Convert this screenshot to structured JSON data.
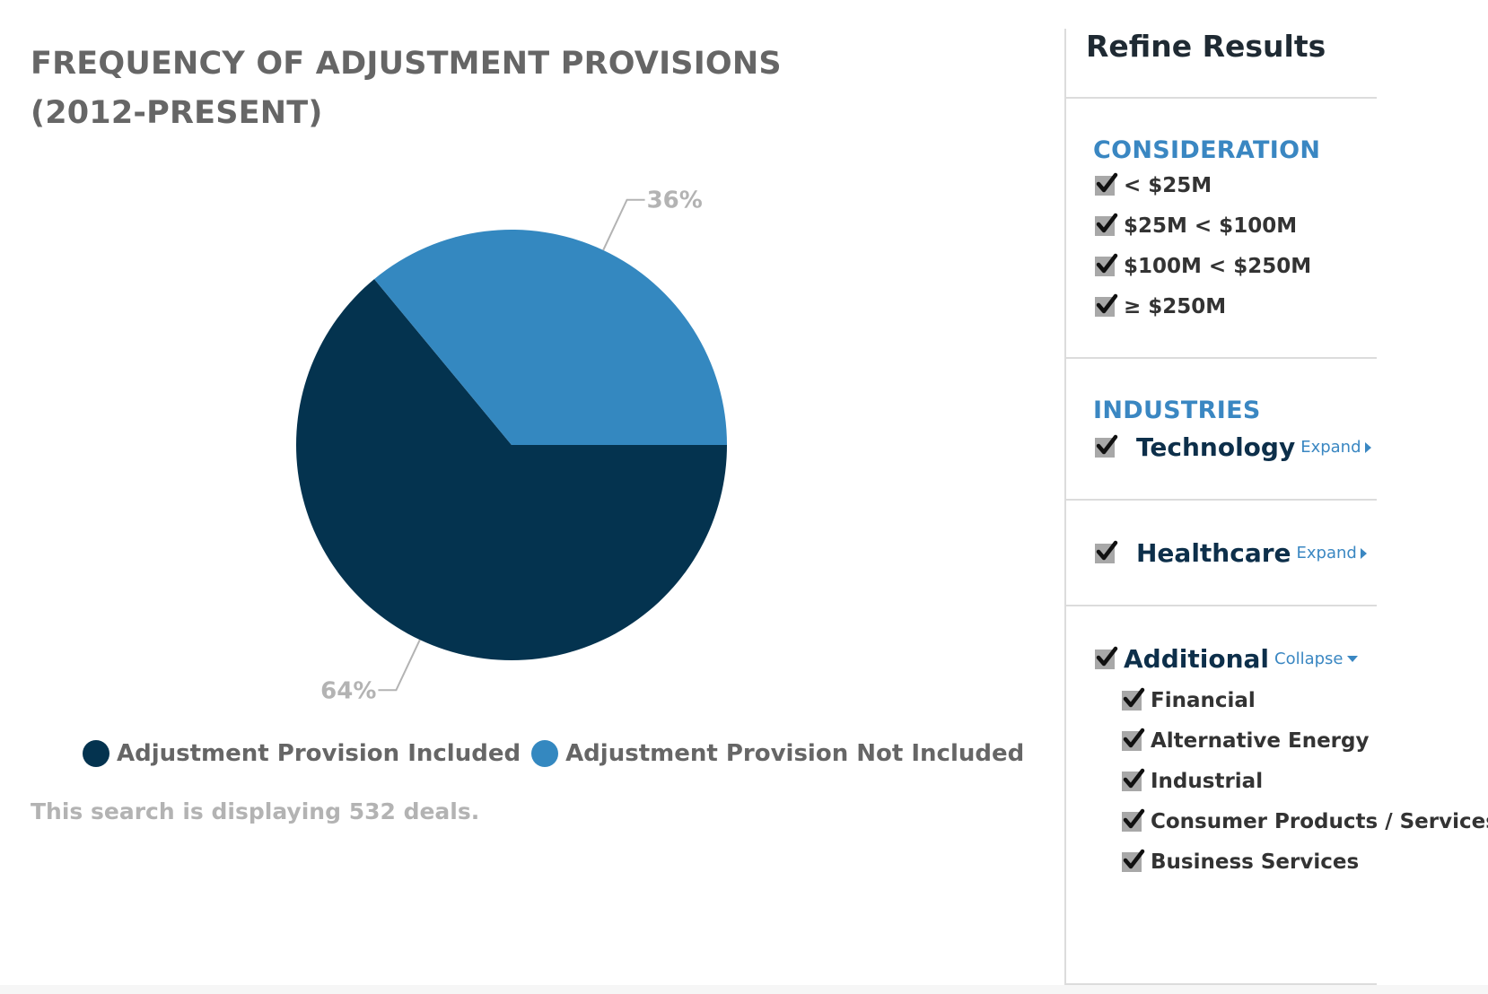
{
  "chart_data": {
    "type": "pie",
    "title": "FREQUENCY OF ADJUSTMENT PROVISIONS (2012-PRESENT)",
    "title_lines": [
      "FREQUENCY OF ADJUSTMENT PROVISIONS",
      "(2012-PRESENT)"
    ],
    "slices": [
      {
        "label": "Adjustment Provision Included",
        "value": 64,
        "display": "64%",
        "color": "#04334f"
      },
      {
        "label": "Adjustment Provision Not Included",
        "value": 36,
        "display": "36%",
        "color": "#3488c0"
      }
    ],
    "legend_position": "bottom",
    "note": "This search is displaying 532 deals."
  },
  "sidebar": {
    "title": "Refine Results",
    "consideration": {
      "heading": "CONSIDERATION",
      "options": [
        "< $25M",
        "$25M < $100M",
        "$100M < $250M",
        "≥ $250M"
      ]
    },
    "industries": {
      "heading": "INDUSTRIES",
      "technology": {
        "label": "Technology",
        "toggle": "Expand"
      },
      "healthcare": {
        "label": "Healthcare",
        "toggle": "Expand"
      },
      "additional": {
        "label": "Additional",
        "toggle": "Collapse",
        "items": [
          "Financial",
          "Alternative Energy",
          "Industrial",
          "Consumer Products / Services",
          "Business Services"
        ]
      }
    }
  },
  "colors": {
    "accent": "#3a87c2",
    "dark_slice": "#04334f",
    "light_slice": "#3488c0"
  }
}
